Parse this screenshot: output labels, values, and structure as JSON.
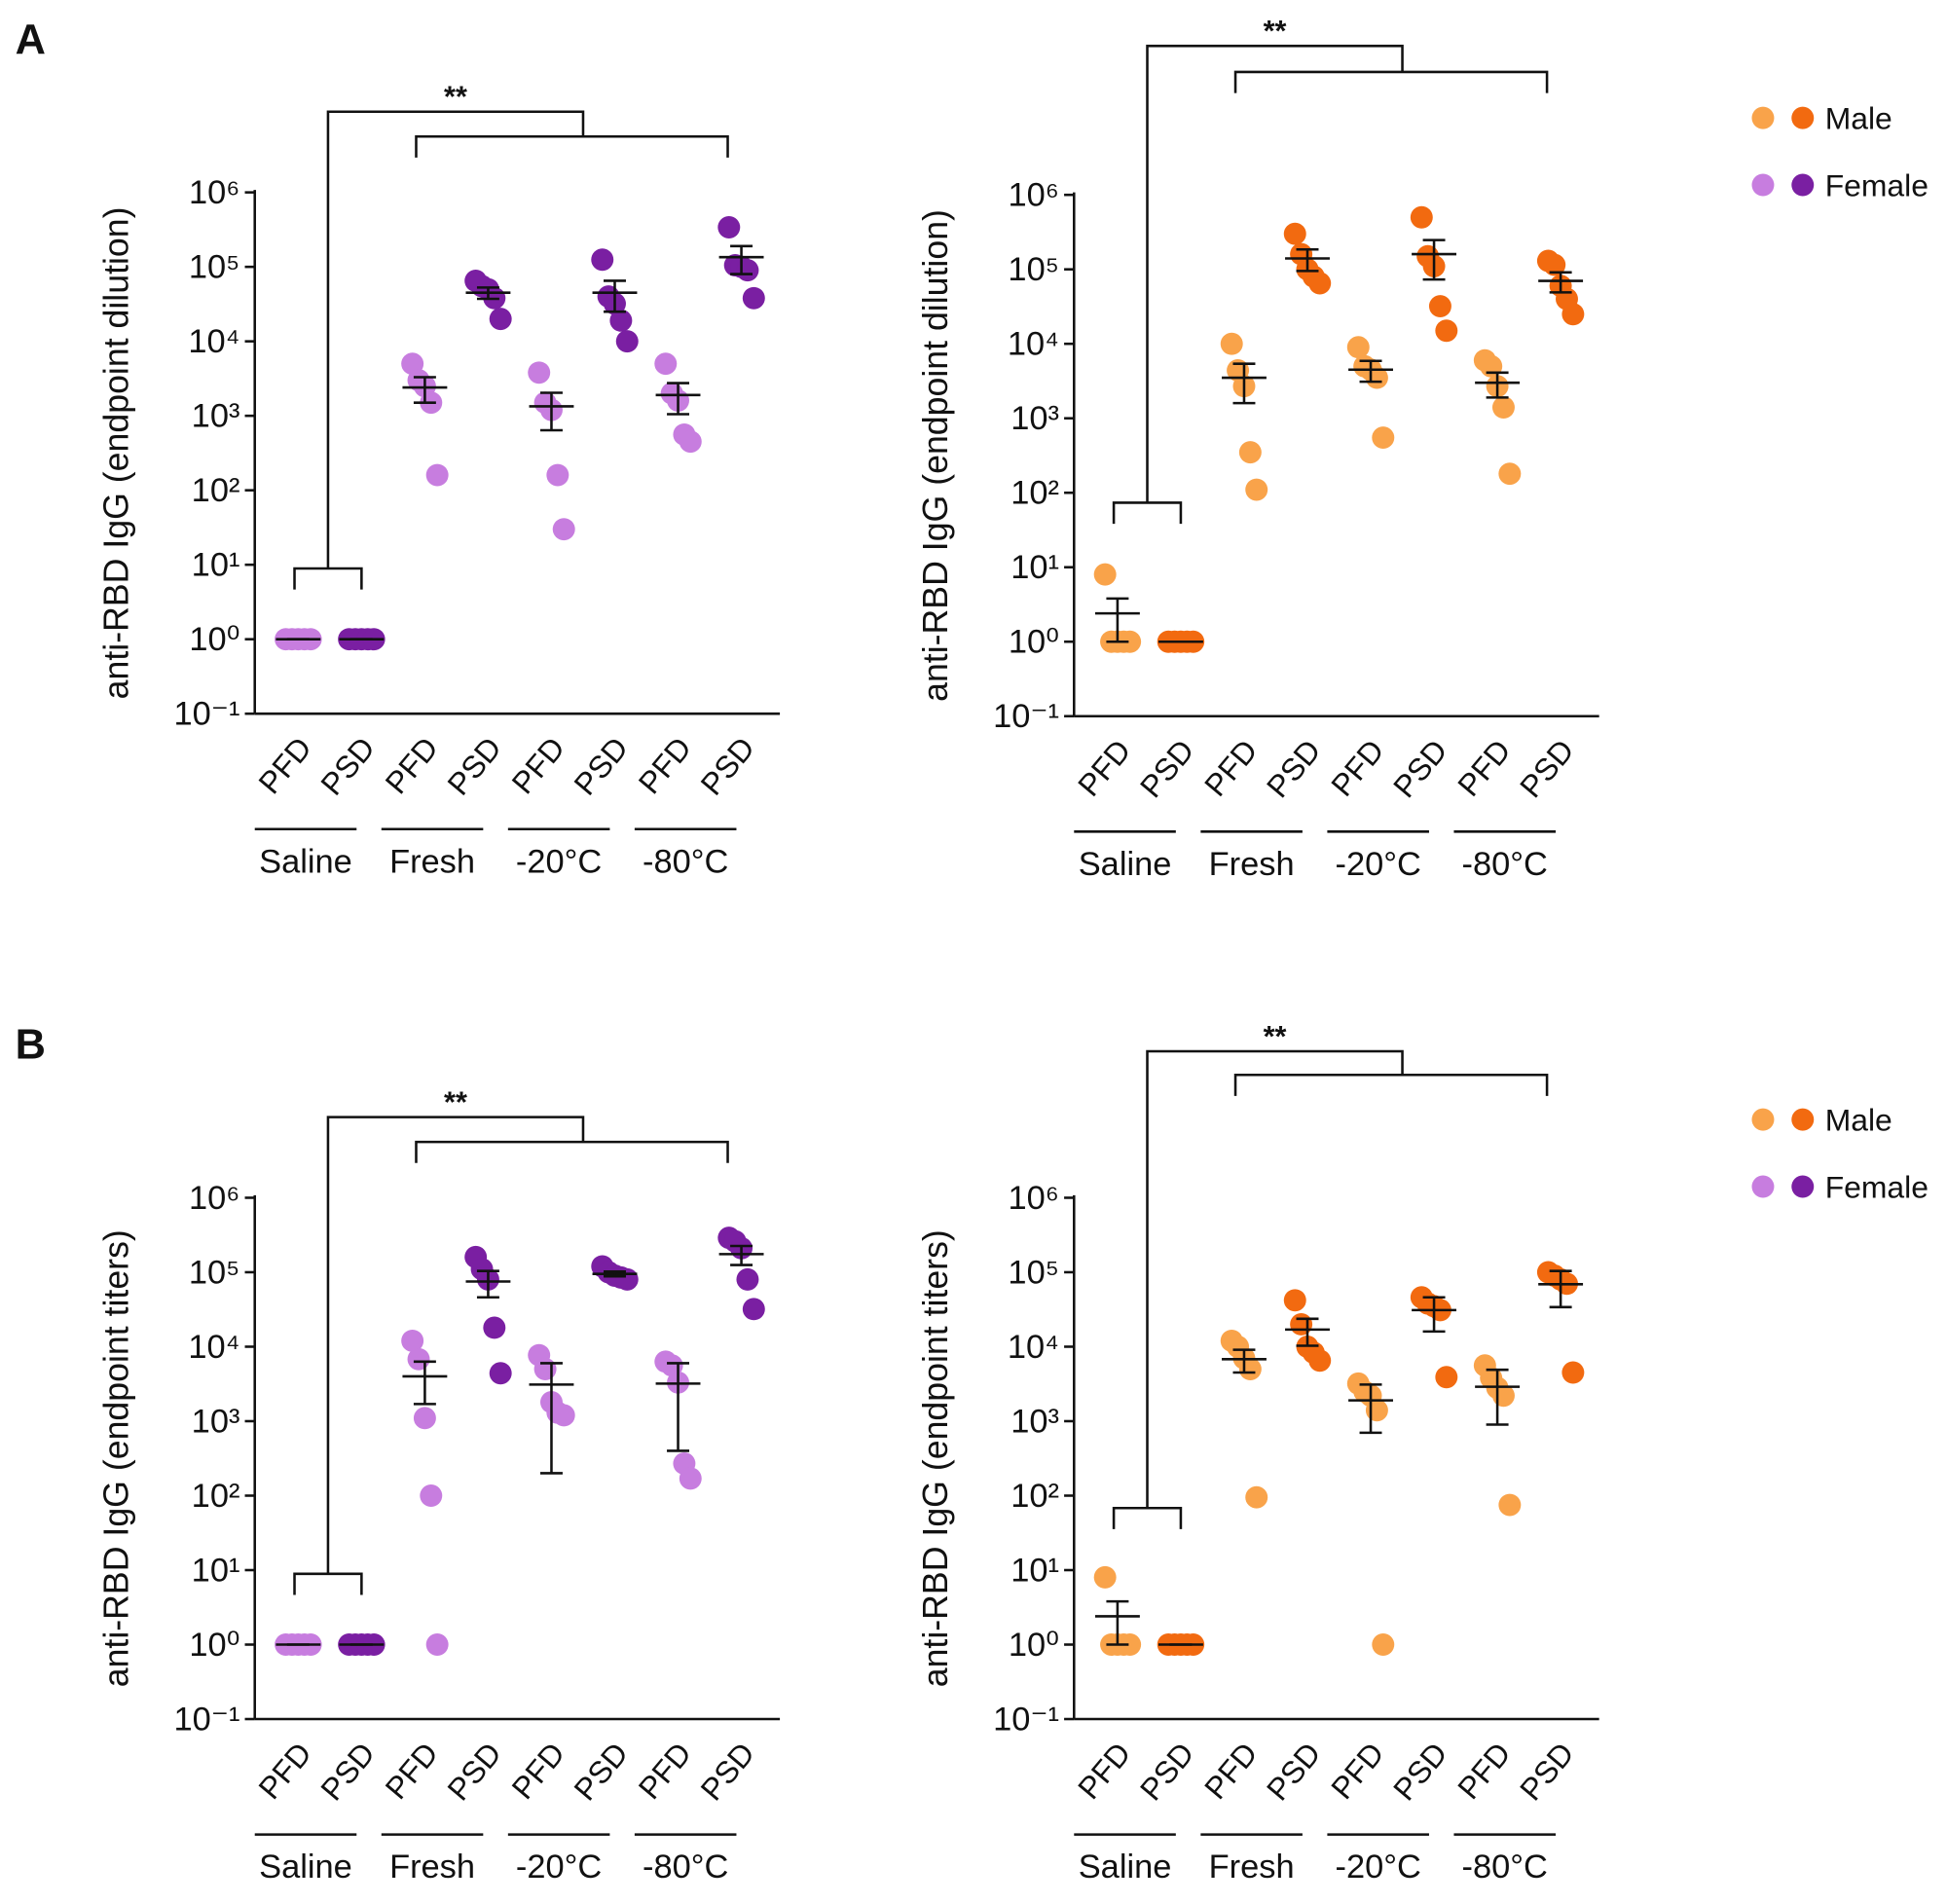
{
  "chart_data": [
    {
      "type": "dotplot",
      "panel_label": "A",
      "y_label": "anti-RBD IgG (endpoint dilution)",
      "significance": "**",
      "categories": [
        "PFD",
        "PSD",
        "PFD",
        "PSD",
        "PFD",
        "PSD",
        "PFD",
        "PSD"
      ],
      "groups": [
        "Saline",
        "Fresh",
        "-20°C",
        "-80°C"
      ],
      "colors": [
        "#c77ddf",
        "#7a1fa2",
        "#c77ddf",
        "#7a1fa2",
        "#c77ddf",
        "#7a1fa2",
        "#c77ddf",
        "#7a1fa2"
      ],
      "values": [
        [
          1,
          1,
          1,
          1,
          1
        ],
        [
          1,
          1,
          1,
          1,
          1
        ],
        [
          5000,
          3000,
          2500,
          1500,
          160
        ],
        [
          65000,
          55000,
          50000,
          38000,
          20000
        ],
        [
          3800,
          1500,
          1200,
          160,
          30
        ],
        [
          125000,
          40000,
          32000,
          19000,
          10000
        ],
        [
          5000,
          2000,
          1600,
          560,
          450
        ],
        [
          340000,
          105000,
          100000,
          90000,
          38000
        ]
      ],
      "means": [
        1,
        1,
        2400,
        45000,
        1340,
        45000,
        1900,
        135000
      ],
      "errors": [
        0,
        0,
        900,
        7800,
        700,
        20000,
        850,
        55000
      ],
      "log_scale": true,
      "ylim": [
        0.1,
        1000000
      ],
      "yticks": [
        {
          "value": 0.1,
          "label": "10⁻¹"
        },
        {
          "value": 1,
          "label": "10⁰"
        },
        {
          "value": 10,
          "label": "10¹"
        },
        {
          "value": 100,
          "label": "10²"
        },
        {
          "value": 1000,
          "label": "10³"
        },
        {
          "value": 10000,
          "label": "10⁴"
        },
        {
          "value": 100000,
          "label": "10⁵"
        },
        {
          "value": 1000000,
          "label": "10⁶"
        }
      ]
    },
    {
      "type": "dotplot",
      "y_label": "anti-RBD IgG (endpoint dilution)",
      "significance": "**",
      "categories": [
        "PFD",
        "PSD",
        "PFD",
        "PSD",
        "PFD",
        "PSD",
        "PFD",
        "PSD"
      ],
      "groups": [
        "Saline",
        "Fresh",
        "-20°C",
        "-80°C"
      ],
      "colors": [
        "#f9a34a",
        "#f26a10",
        "#f9a34a",
        "#f26a10",
        "#f9a34a",
        "#f26a10",
        "#f9a34a",
        "#f26a10"
      ],
      "values": [
        [
          8,
          1,
          1,
          1,
          1
        ],
        [
          1,
          1,
          1,
          1,
          1
        ],
        [
          10000,
          4400,
          2700,
          350,
          110
        ],
        [
          300000,
          160000,
          100000,
          80000,
          65000
        ],
        [
          9000,
          5000,
          4500,
          3500,
          550
        ],
        [
          500000,
          150000,
          110000,
          32000,
          15000
        ],
        [
          6000,
          5000,
          2700,
          1400,
          180
        ],
        [
          130000,
          115000,
          60000,
          40000,
          25000
        ]
      ],
      "means": [
        2.4,
        1,
        3500,
        140000,
        4500,
        160000,
        3000,
        70000
      ],
      "errors": [
        1.4,
        0,
        1900,
        45000,
        1400,
        87000,
        1100,
        21000
      ],
      "log_scale": true,
      "ylim": [
        0.1,
        1000000
      ],
      "yticks": [
        {
          "value": 0.1,
          "label": "10⁻¹"
        },
        {
          "value": 1,
          "label": "10⁰"
        },
        {
          "value": 10,
          "label": "10¹"
        },
        {
          "value": 100,
          "label": "10²"
        },
        {
          "value": 1000,
          "label": "10³"
        },
        {
          "value": 10000,
          "label": "10⁴"
        },
        {
          "value": 100000,
          "label": "10⁵"
        },
        {
          "value": 1000000,
          "label": "10⁶"
        }
      ],
      "legend": [
        {
          "name": "Male",
          "colors": [
            "#f9a34a",
            "#f26a10"
          ]
        },
        {
          "name": "Female",
          "colors": [
            "#c77ddf",
            "#7a1fa2"
          ]
        }
      ]
    },
    {
      "type": "dotplot",
      "panel_label": "B",
      "y_label": "anti-RBD IgG (endpoint titers)",
      "significance": "**",
      "categories": [
        "PFD",
        "PSD",
        "PFD",
        "PSD",
        "PFD",
        "PSD",
        "PFD",
        "PSD"
      ],
      "groups": [
        "Saline",
        "Fresh",
        "-20°C",
        "-80°C"
      ],
      "colors": [
        "#c77ddf",
        "#7a1fa2",
        "#c77ddf",
        "#7a1fa2",
        "#c77ddf",
        "#7a1fa2",
        "#c77ddf",
        "#7a1fa2"
      ],
      "values": [
        [
          1,
          1,
          1,
          1,
          1
        ],
        [
          1,
          1,
          1,
          1,
          1
        ],
        [
          12000,
          6800,
          1100,
          100,
          1
        ],
        [
          160000,
          110000,
          80000,
          18000,
          4400
        ],
        [
          7700,
          5000,
          1800,
          1300,
          1200
        ],
        [
          120000,
          100000,
          90000,
          85000,
          80000
        ],
        [
          6300,
          5600,
          3300,
          270,
          170
        ],
        [
          290000,
          260000,
          210000,
          80000,
          32000
        ]
      ],
      "means": [
        1,
        1,
        4000,
        75000,
        3100,
        95000,
        3200,
        175000
      ],
      "errors": [
        0,
        0,
        2300,
        29000,
        2900,
        7000,
        2800,
        50000
      ],
      "log_scale": true,
      "ylim": [
        0.1,
        1000000
      ],
      "yticks": [
        {
          "value": 0.1,
          "label": "10⁻¹"
        },
        {
          "value": 1,
          "label": "10⁰"
        },
        {
          "value": 10,
          "label": "10¹"
        },
        {
          "value": 100,
          "label": "10²"
        },
        {
          "value": 1000,
          "label": "10³"
        },
        {
          "value": 10000,
          "label": "10⁴"
        },
        {
          "value": 100000,
          "label": "10⁵"
        },
        {
          "value": 1000000,
          "label": "10⁶"
        }
      ]
    },
    {
      "type": "dotplot",
      "y_label": "anti-RBD IgG (endpoint titers)",
      "significance": "**",
      "categories": [
        "PFD",
        "PSD",
        "PFD",
        "PSD",
        "PFD",
        "PSD",
        "PFD",
        "PSD"
      ],
      "groups": [
        "Saline",
        "Fresh",
        "-20°C",
        "-80°C"
      ],
      "colors": [
        "#f9a34a",
        "#f26a10",
        "#f9a34a",
        "#f26a10",
        "#f9a34a",
        "#f26a10",
        "#f9a34a",
        "#f26a10"
      ],
      "values": [
        [
          8,
          1,
          1,
          1,
          1
        ],
        [
          1,
          1,
          1,
          1,
          1
        ],
        [
          12000,
          10000,
          7000,
          5000,
          95
        ],
        [
          42000,
          20000,
          10000,
          8300,
          6500
        ],
        [
          3200,
          2500,
          2200,
          1400,
          1
        ],
        [
          46000,
          38000,
          35000,
          31000,
          3900
        ],
        [
          5600,
          3800,
          2800,
          2200,
          75
        ],
        [
          100000,
          90000,
          80000,
          70000,
          4500
        ]
      ],
      "means": [
        2.4,
        1,
        6800,
        17000,
        1900,
        31000,
        2900,
        69000
      ],
      "errors": [
        1.4,
        0,
        2300,
        6700,
        1200,
        15000,
        2000,
        35000
      ],
      "log_scale": true,
      "ylim": [
        0.1,
        1000000
      ],
      "yticks": [
        {
          "value": 0.1,
          "label": "10⁻¹"
        },
        {
          "value": 1,
          "label": "10⁰"
        },
        {
          "value": 10,
          "label": "10¹"
        },
        {
          "value": 100,
          "label": "10²"
        },
        {
          "value": 1000,
          "label": "10³"
        },
        {
          "value": 10000,
          "label": "10⁴"
        },
        {
          "value": 100000,
          "label": "10⁵"
        },
        {
          "value": 1000000,
          "label": "10⁶"
        }
      ],
      "legend": [
        {
          "name": "Male",
          "colors": [
            "#f9a34a",
            "#f26a10"
          ]
        },
        {
          "name": "Female",
          "colors": [
            "#c77ddf",
            "#7a1fa2"
          ]
        }
      ]
    }
  ]
}
